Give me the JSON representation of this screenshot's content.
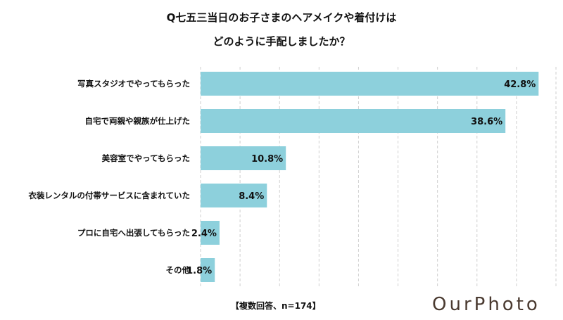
{
  "chart_data": {
    "type": "bar",
    "orientation": "horizontal",
    "title": "Q七五三当日のお子さまのヘアメイクや着付けは",
    "title_line2": "どのように手配しましたか？",
    "categories": [
      "写真スタジオでやってもらった",
      "自宅で両親や親族が仕上げた",
      "美容室でやってもらった",
      "衣装レンタルの付帯サービスに含まれていた",
      "プロに自宅へ出張してもらった",
      "その他"
    ],
    "values": [
      42.8,
      38.6,
      10.8,
      8.4,
      2.4,
      1.8
    ],
    "value_labels": [
      "42.8%",
      "38.6%",
      "10.8%",
      "8.4%",
      "2.4%",
      "1.8%"
    ],
    "xlim": [
      0,
      45
    ],
    "grid": true,
    "grid_step": 5,
    "bar_color": "#8dd0dc",
    "note": "【複数回答、n=174】"
  },
  "logo": "OurPhoto"
}
